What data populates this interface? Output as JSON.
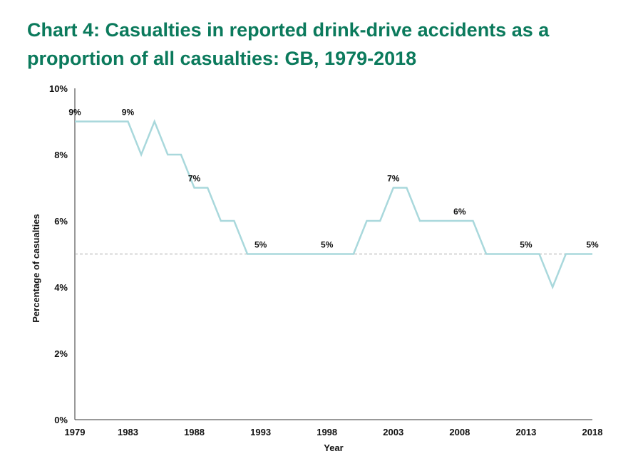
{
  "chart_data": {
    "type": "line",
    "title": "Chart 4: Casualties in reported drink-drive accidents as a proportion of all casualties: GB, 1979-2018",
    "xlabel": "Year",
    "ylabel": "Percentage of casualties",
    "x": [
      1979,
      1980,
      1981,
      1982,
      1983,
      1984,
      1985,
      1986,
      1987,
      1988,
      1989,
      1990,
      1991,
      1992,
      1993,
      1994,
      1995,
      1996,
      1997,
      1998,
      1999,
      2000,
      2001,
      2002,
      2003,
      2004,
      2005,
      2006,
      2007,
      2008,
      2009,
      2010,
      2011,
      2012,
      2013,
      2014,
      2015,
      2016,
      2017,
      2018
    ],
    "series": [
      {
        "values": [
          9,
          9,
          9,
          9,
          9,
          8,
          9,
          8,
          8,
          7,
          7,
          6,
          6,
          5,
          5,
          5,
          5,
          5,
          5,
          5,
          5,
          5,
          6,
          6,
          7,
          7,
          6,
          6,
          6,
          6,
          6,
          5,
          5,
          5,
          5,
          5,
          4,
          5,
          5,
          5
        ],
        "color": "#a9d8dc"
      }
    ],
    "xticks": [
      "1979",
      "1983",
      "1988",
      "1993",
      "1998",
      "2003",
      "2008",
      "2013",
      "2018"
    ],
    "yticks": [
      "0%",
      "2%",
      "4%",
      "6%",
      "8%",
      "10%"
    ],
    "ylim": [
      0,
      10
    ],
    "reference_line": {
      "y": 5,
      "style": "dashed",
      "color": "#a6a6a6"
    },
    "data_labels": [
      {
        "x": 1979,
        "text": "9%"
      },
      {
        "x": 1983,
        "text": "9%"
      },
      {
        "x": 1988,
        "text": "7%"
      },
      {
        "x": 1993,
        "text": "5%"
      },
      {
        "x": 1998,
        "text": "5%"
      },
      {
        "x": 2003,
        "text": "7%"
      },
      {
        "x": 2008,
        "text": "6%"
      },
      {
        "x": 2013,
        "text": "5%"
      },
      {
        "x": 2018,
        "text": "5%"
      }
    ],
    "grid": false,
    "legend": "none"
  }
}
